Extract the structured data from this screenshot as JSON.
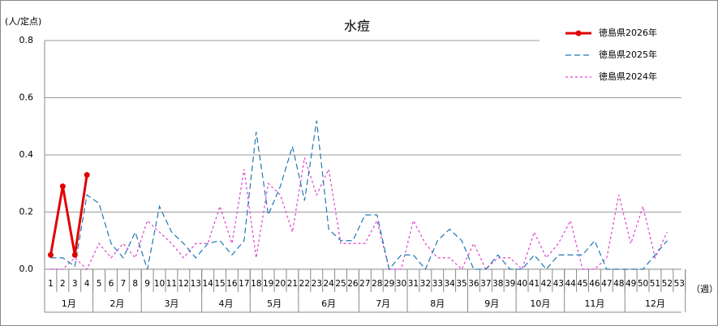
{
  "chart_data": {
    "type": "line",
    "title": "水痘",
    "y_axis_label": "(人/定点)",
    "x_axis_label": "（週）",
    "categories": [
      "1",
      "2",
      "3",
      "4",
      "5",
      "6",
      "7",
      "8",
      "9",
      "10",
      "11",
      "12",
      "13",
      "14",
      "15",
      "16",
      "17",
      "18",
      "19",
      "20",
      "21",
      "22",
      "23",
      "24",
      "25",
      "26",
      "27",
      "28",
      "29",
      "30",
      "31",
      "32",
      "33",
      "34",
      "35",
      "36",
      "37",
      "38",
      "39",
      "40",
      "41",
      "42",
      "43",
      "44",
      "45",
      "46",
      "47",
      "48",
      "49",
      "50",
      "51",
      "52",
      "53"
    ],
    "month_groups": [
      {
        "label": "1月",
        "first": 0,
        "last": 3
      },
      {
        "label": "2月",
        "first": 4,
        "last": 7
      },
      {
        "label": "3月",
        "first": 8,
        "last": 12
      },
      {
        "label": "4月",
        "first": 13,
        "last": 16
      },
      {
        "label": "5月",
        "first": 17,
        "last": 20
      },
      {
        "label": "6月",
        "first": 21,
        "last": 25
      },
      {
        "label": "7月",
        "first": 26,
        "last": 29
      },
      {
        "label": "8月",
        "first": 30,
        "last": 34
      },
      {
        "label": "9月",
        "first": 35,
        "last": 38
      },
      {
        "label": "10月",
        "first": 39,
        "last": 42
      },
      {
        "label": "11月",
        "first": 43,
        "last": 47
      },
      {
        "label": "12月",
        "first": 48,
        "last": 52
      }
    ],
    "series": [
      {
        "name": "徳島県2026年",
        "color": "#e00000",
        "style": "solid",
        "markers": true,
        "values": [
          0.05,
          0.29,
          0.05,
          0.33,
          null,
          null,
          null,
          null,
          null,
          null,
          null,
          null,
          null,
          null,
          null,
          null,
          null,
          null,
          null,
          null,
          null,
          null,
          null,
          null,
          null,
          null,
          null,
          null,
          null,
          null,
          null,
          null,
          null,
          null,
          null,
          null,
          null,
          null,
          null,
          null,
          null,
          null,
          null,
          null,
          null,
          null,
          null,
          null,
          null,
          null,
          null,
          null,
          null
        ]
      },
      {
        "name": "徳島県2025年",
        "color": "#1f77b4",
        "style": "dashed",
        "markers": false,
        "values": [
          0.04,
          0.04,
          0.01,
          0.26,
          0.23,
          0.09,
          0.04,
          0.13,
          0.0,
          0.22,
          0.13,
          0.09,
          0.04,
          0.09,
          0.1,
          0.05,
          0.1,
          0.48,
          0.19,
          0.29,
          0.43,
          0.24,
          0.52,
          0.14,
          0.1,
          0.1,
          0.19,
          0.19,
          0.0,
          0.05,
          0.05,
          0.0,
          0.1,
          0.14,
          0.1,
          0.0,
          0.0,
          0.05,
          0.0,
          0.0,
          0.05,
          0.0,
          0.05,
          0.05,
          0.05,
          0.1,
          0.0,
          0.0,
          0.0,
          0.0,
          0.05,
          0.1,
          null
        ]
      },
      {
        "name": "徳島県2024年",
        "color": "#e040d0",
        "style": "dotted",
        "markers": false,
        "values": [
          0.0,
          0.0,
          0.04,
          0.0,
          0.09,
          0.04,
          0.09,
          0.04,
          0.17,
          0.13,
          0.09,
          0.04,
          0.09,
          0.09,
          0.22,
          0.09,
          0.35,
          0.04,
          0.3,
          0.26,
          0.13,
          0.39,
          0.26,
          0.35,
          0.09,
          0.09,
          0.09,
          0.17,
          0.0,
          0.0,
          0.17,
          0.09,
          0.04,
          0.04,
          0.0,
          0.09,
          0.0,
          0.04,
          0.04,
          0.0,
          0.13,
          0.04,
          0.09,
          0.17,
          0.0,
          0.0,
          0.04,
          0.26,
          0.09,
          0.22,
          0.04,
          0.13,
          null
        ]
      }
    ],
    "ylim": [
      0,
      0.8
    ],
    "yticks": [
      {
        "value": 0,
        "label": "0.0"
      },
      {
        "value": 0.2,
        "label": "0.2"
      },
      {
        "value": 0.4,
        "label": "0.4"
      },
      {
        "value": 0.6,
        "label": "0.6"
      },
      {
        "value": 0.8,
        "label": "0.8"
      }
    ],
    "grid": true,
    "legend": "upper right"
  }
}
